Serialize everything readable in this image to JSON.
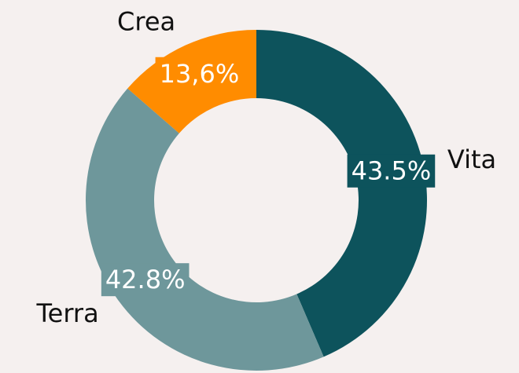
{
  "chart_data": {
    "type": "donut",
    "categories": [
      "Vita",
      "Terra",
      "Crea"
    ],
    "values": [
      43.5,
      42.8,
      13.6
    ],
    "value_labels": [
      "43.5%",
      "42.8%",
      "13,6%"
    ],
    "colors": [
      "#0d535c",
      "#6e979b",
      "#ff8c00"
    ]
  }
}
